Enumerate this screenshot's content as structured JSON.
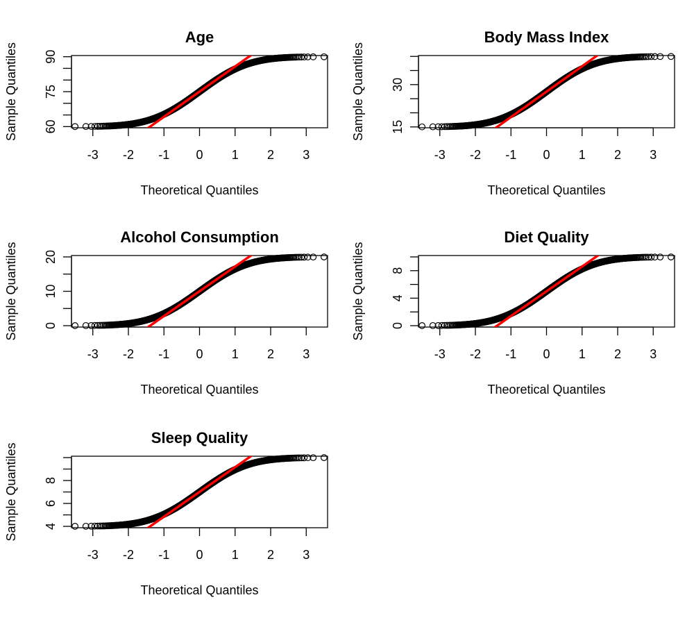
{
  "chart_data": [
    {
      "type": "scatter",
      "title": "Age",
      "xlabel": "Theoretical Quantiles",
      "ylabel": "Sample Quantiles",
      "xticks": [
        -3,
        -2,
        -1,
        0,
        1,
        2,
        3
      ],
      "yticks": [
        60,
        75,
        90
      ],
      "yminor": [
        65,
        70,
        80,
        85
      ],
      "xlim": [
        -3.6,
        3.6
      ],
      "ylim": [
        59.5,
        90.5
      ],
      "dist": {
        "min": 60,
        "max": 90
      },
      "qq_line": {
        "slope": 10.8,
        "intercept": 75
      },
      "line_color": "#ff0000"
    },
    {
      "type": "scatter",
      "title": "Body Mass Index",
      "xlabel": "Theoretical Quantiles",
      "ylabel": "Sample Quantiles",
      "xticks": [
        -3,
        -2,
        -1,
        0,
        1,
        2,
        3
      ],
      "yticks": [
        15,
        30
      ],
      "yminor": [
        20,
        25,
        35,
        40
      ],
      "xlim": [
        -3.6,
        3.6
      ],
      "ylim": [
        14.7,
        40.3
      ],
      "dist": {
        "min": 15,
        "max": 40
      },
      "qq_line": {
        "slope": 9.0,
        "intercept": 27.5
      },
      "line_color": "#ff0000"
    },
    {
      "type": "scatter",
      "title": "Alcohol Consumption",
      "xlabel": "Theoretical Quantiles",
      "ylabel": "Sample Quantiles",
      "xticks": [
        -3,
        -2,
        -1,
        0,
        1,
        2,
        3
      ],
      "yticks": [
        0,
        10,
        20
      ],
      "yminor": [
        5,
        15
      ],
      "xlim": [
        -3.6,
        3.6
      ],
      "ylim": [
        -0.4,
        20.4
      ],
      "dist": {
        "min": 0,
        "max": 20
      },
      "qq_line": {
        "slope": 7.2,
        "intercept": 10
      },
      "line_color": "#ff0000"
    },
    {
      "type": "scatter",
      "title": "Diet Quality",
      "xlabel": "Theoretical Quantiles",
      "ylabel": "Sample Quantiles",
      "xticks": [
        -3,
        -2,
        -1,
        0,
        1,
        2,
        3
      ],
      "yticks": [
        0,
        4,
        8
      ],
      "yminor": [
        2,
        6,
        10
      ],
      "xlim": [
        -3.6,
        3.6
      ],
      "ylim": [
        -0.2,
        10.2
      ],
      "dist": {
        "min": 0,
        "max": 10
      },
      "qq_line": {
        "slope": 3.6,
        "intercept": 5
      },
      "line_color": "#ff0000"
    },
    {
      "type": "scatter",
      "title": "Sleep Quality",
      "xlabel": "Theoretical Quantiles",
      "ylabel": "Sample Quantiles",
      "xticks": [
        -3,
        -2,
        -1,
        0,
        1,
        2,
        3
      ],
      "yticks": [
        4,
        6,
        8
      ],
      "yminor": [
        5,
        7,
        9,
        10
      ],
      "xlim": [
        -3.6,
        3.6
      ],
      "ylim": [
        3.88,
        10.12
      ],
      "dist": {
        "min": 4,
        "max": 10
      },
      "qq_line": {
        "slope": 2.16,
        "intercept": 7
      },
      "line_color": "#ff0000"
    }
  ]
}
